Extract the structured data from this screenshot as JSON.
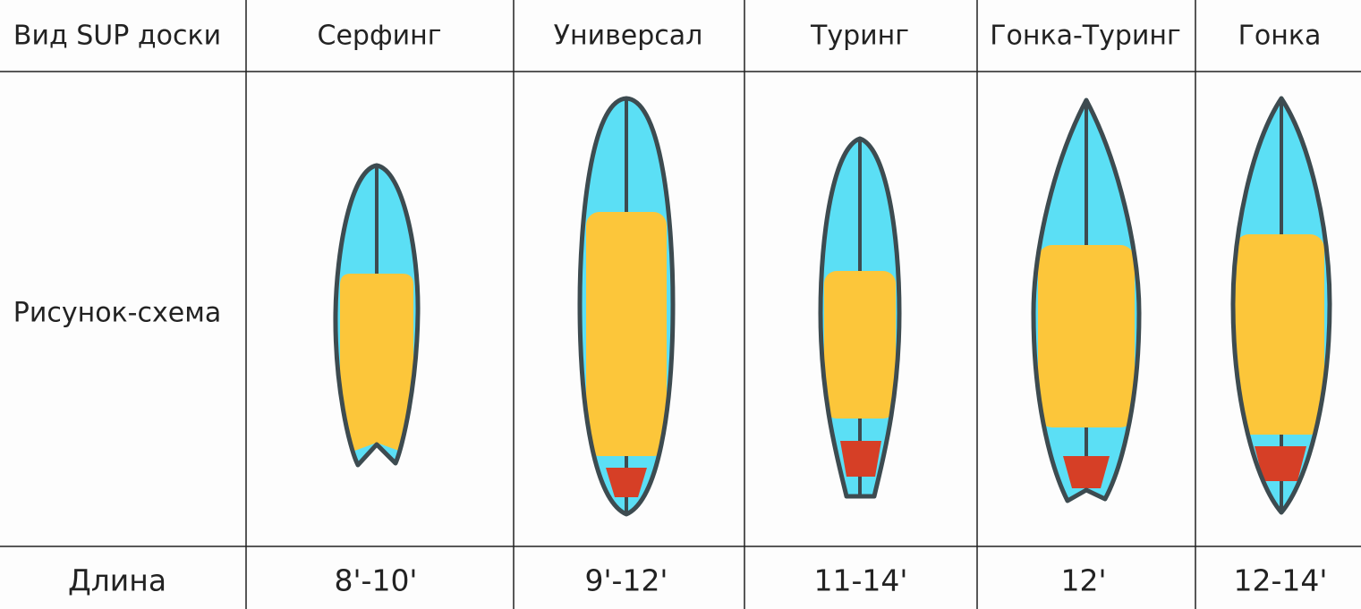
{
  "table": {
    "header": [
      "Вид SUP доски",
      "Серфинг",
      "Универсал",
      "Туринг",
      "Гонка-Туринг",
      "Гонка"
    ],
    "rows": [
      [
        "Рисунок-схема"
      ],
      [
        "Длина",
        "8'-10'",
        "9'-12'",
        "11-14'",
        "12'",
        "12-14'"
      ]
    ]
  }
}
